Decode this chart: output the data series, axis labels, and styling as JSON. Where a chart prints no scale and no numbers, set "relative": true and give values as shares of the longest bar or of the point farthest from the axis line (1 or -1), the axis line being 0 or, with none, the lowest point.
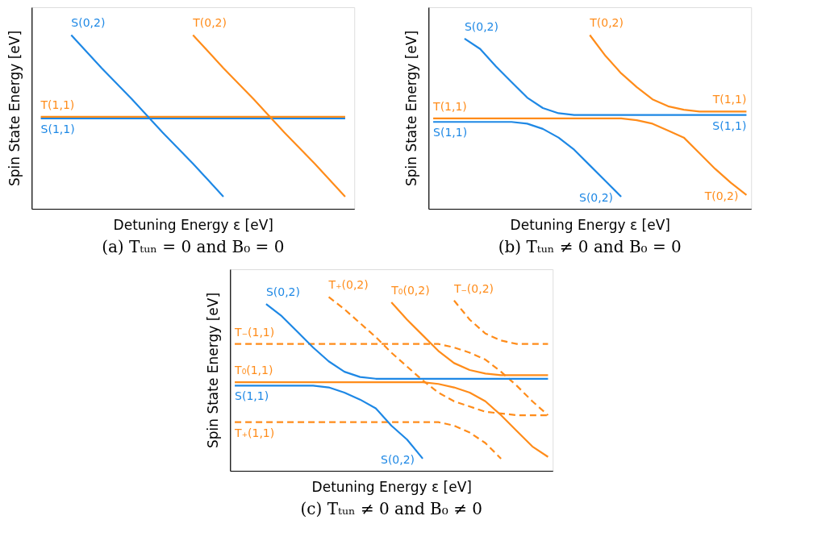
{
  "chart_data": [
    {
      "type": "line",
      "relative": true,
      "title": "(a) Tₜᵤₙ = 0 and B₀ = 0",
      "xlabel": "Detuning Energy ε [eV]",
      "ylabel": "Spin State Energy [eV]",
      "categories": [
        null,
        null,
        null,
        null,
        null,
        null,
        null,
        null,
        null,
        null,
        null
      ],
      "series": [
        {
          "name": "S(1,1)",
          "color": "#1e88e5",
          "values": [
            0.52,
            0.52,
            0.52,
            0.52,
            0.52,
            0.52,
            0.52,
            0.52,
            0.52,
            0.52,
            0.52
          ]
        },
        {
          "name": "T(1,1)",
          "color": "#ff8c1a",
          "values": [
            0.53,
            0.53,
            0.53,
            0.53,
            0.53,
            0.53,
            0.53,
            0.53,
            0.53,
            0.53,
            0.53
          ]
        },
        {
          "name": "S(0,2)",
          "color": "#1e88e5",
          "values": [
            null,
            1.0,
            0.81,
            0.63,
            0.44,
            0.26,
            0.07,
            null,
            null,
            null,
            null
          ]
        },
        {
          "name": "T(0,2)",
          "color": "#ff8c1a",
          "values": [
            null,
            null,
            null,
            null,
            null,
            1.0,
            0.81,
            0.63,
            0.44,
            0.26,
            0.07
          ]
        }
      ]
    },
    {
      "type": "line",
      "relative": true,
      "title": "(b) Tₜᵤₙ ≠ 0 and B₀ = 0",
      "xlabel": "Detuning Energy ε [eV]",
      "ylabel": "Spin State Energy [eV]",
      "categories": [
        null,
        null,
        null,
        null,
        null,
        null,
        null,
        null,
        null,
        null,
        null,
        null,
        null,
        null,
        null,
        null,
        null,
        null,
        null,
        null,
        null
      ],
      "series": [
        {
          "name": "S(0,2)",
          "color": "#1e88e5",
          "values": [
            null,
            null,
            0.98,
            0.92,
            0.82,
            0.73,
            0.64,
            0.58,
            0.55,
            0.54,
            0.54,
            0.54,
            0.54,
            0.54,
            0.54,
            0.54,
            0.54,
            0.54,
            0.54,
            0.54,
            0.54
          ]
        },
        {
          "name": "S(1,1)",
          "color": "#1e88e5",
          "values": [
            0.5,
            0.5,
            0.5,
            0.5,
            0.5,
            0.5,
            0.49,
            0.46,
            0.41,
            0.34,
            0.25,
            0.16,
            0.07,
            null,
            null,
            null,
            null,
            null,
            null,
            null,
            null
          ]
        },
        {
          "name": "T(0,2)",
          "color": "#ff8c1a",
          "values": [
            null,
            null,
            null,
            null,
            null,
            null,
            null,
            null,
            null,
            null,
            1.0,
            0.88,
            0.78,
            0.7,
            0.63,
            0.59,
            0.57,
            0.56,
            0.56,
            0.56,
            0.56
          ]
        },
        {
          "name": "T(1,1)",
          "color": "#ff8c1a",
          "values": [
            0.52,
            0.52,
            0.52,
            0.52,
            0.52,
            0.52,
            0.52,
            0.52,
            0.52,
            0.52,
            0.52,
            0.52,
            0.52,
            0.51,
            0.49,
            0.45,
            0.41,
            0.32,
            0.23,
            0.15,
            0.08
          ]
        }
      ],
      "annotations": [
        "S(1,1)",
        "S(0,2)",
        "T(1,1)",
        "T(0,2)"
      ]
    },
    {
      "type": "line",
      "relative": true,
      "title": "(c) Tₜᵤₙ ≠ 0 and B₀ ≠ 0",
      "xlabel": "Detuning Energy ε [eV]",
      "ylabel": "Spin State Energy [eV]",
      "categories": [
        null,
        null,
        null,
        null,
        null,
        null,
        null,
        null,
        null,
        null,
        null,
        null,
        null,
        null,
        null,
        null,
        null,
        null,
        null,
        null,
        null
      ],
      "series": [
        {
          "name": "T₋(1,1)",
          "color": "#ff8c1a",
          "line_style": "dashed",
          "values": [
            0.73,
            0.73,
            0.73,
            0.73,
            0.73,
            0.73,
            0.73,
            0.73,
            0.73,
            0.73,
            0.73,
            0.73,
            0.73,
            0.73,
            0.71,
            0.68,
            0.64,
            0.57,
            0.49,
            0.4,
            0.32
          ]
        },
        {
          "name": "T₊(0,2)",
          "color": "#ff8c1a",
          "line_style": "dashed",
          "values": [
            null,
            null,
            null,
            null,
            null,
            null,
            1.0,
            0.93,
            0.85,
            0.77,
            0.68,
            0.6,
            0.52,
            0.45,
            0.4,
            0.37,
            0.34,
            0.33,
            0.32,
            0.32,
            0.32
          ]
        },
        {
          "name": "T₋(0,2)",
          "color": "#ff8c1a",
          "line_style": "dashed",
          "values": [
            null,
            null,
            null,
            null,
            null,
            null,
            null,
            null,
            null,
            null,
            null,
            null,
            null,
            null,
            0.98,
            0.87,
            0.79,
            0.75,
            0.73,
            0.73,
            0.73
          ]
        },
        {
          "name": "T₊(1,1)",
          "color": "#ff8c1a",
          "line_style": "dashed",
          "values": [
            0.28,
            0.28,
            0.28,
            0.28,
            0.28,
            0.28,
            0.28,
            0.28,
            0.28,
            0.28,
            0.28,
            0.28,
            0.28,
            0.28,
            0.26,
            0.22,
            0.16,
            0.07,
            null,
            null,
            null
          ]
        },
        {
          "name": "T₀(0,2)",
          "color": "#ff8c1a",
          "values": [
            null,
            null,
            null,
            null,
            null,
            null,
            null,
            null,
            null,
            null,
            0.97,
            0.87,
            0.78,
            0.69,
            0.62,
            0.58,
            0.56,
            0.55,
            0.55,
            0.55,
            0.55
          ]
        },
        {
          "name": "T₀(1,1)",
          "color": "#ff8c1a",
          "values": [
            0.51,
            0.51,
            0.51,
            0.51,
            0.51,
            0.51,
            0.51,
            0.51,
            0.51,
            0.51,
            0.51,
            0.51,
            0.51,
            0.5,
            0.48,
            0.45,
            0.4,
            0.32,
            0.23,
            0.14,
            0.08
          ]
        },
        {
          "name": "S(0,2)",
          "color": "#1e88e5",
          "values": [
            null,
            null,
            0.96,
            0.89,
            0.8,
            0.71,
            0.63,
            0.57,
            0.54,
            0.53,
            0.53,
            0.53,
            0.53,
            0.53,
            0.53,
            0.53,
            0.53,
            0.53,
            0.53,
            0.53,
            0.53
          ]
        },
        {
          "name": "S(1,1)",
          "color": "#1e88e5",
          "values": [
            0.49,
            0.49,
            0.49,
            0.49,
            0.49,
            0.49,
            0.48,
            0.45,
            0.41,
            0.36,
            0.26,
            0.18,
            0.07,
            null,
            null,
            null,
            null,
            null,
            null,
            null,
            null
          ]
        }
      ],
      "annotations": [
        "S(0,2)"
      ]
    }
  ]
}
